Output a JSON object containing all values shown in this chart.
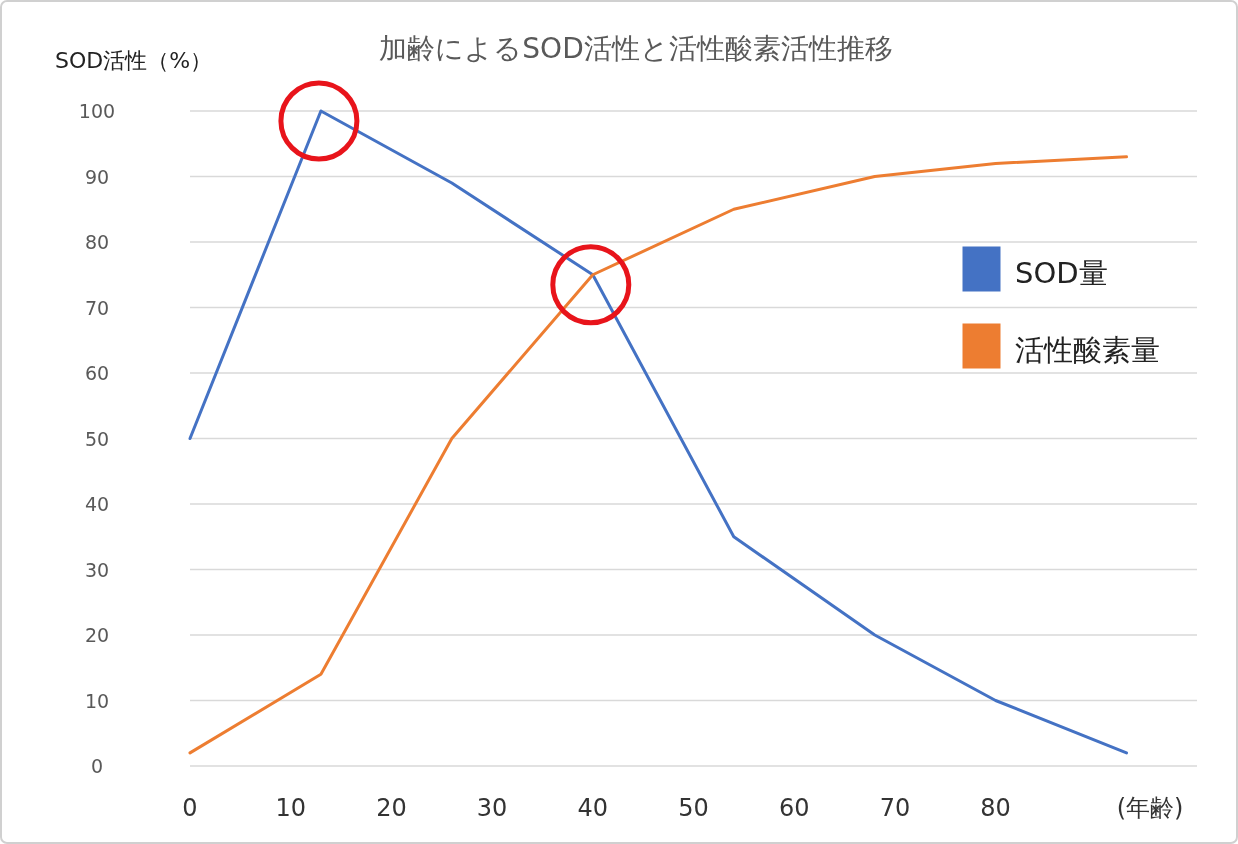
{
  "chart_data": {
    "type": "line",
    "title": "加齢によるSOD活性と活性酸素活性推移",
    "ylabel": "SOD活性（%）",
    "xlabel": "(年齢)",
    "xlim": [
      0,
      100
    ],
    "xticks": [
      0,
      10,
      20,
      30,
      40,
      50,
      60,
      70,
      80
    ],
    "ylim": [
      0,
      100
    ],
    "yticks": [
      0,
      10,
      20,
      30,
      40,
      50,
      60,
      70,
      80,
      90,
      100
    ],
    "grid": "y",
    "legend": "right",
    "series": [
      {
        "name": "SOD量",
        "color": "#4472c4",
        "x": [
          0,
          13,
          26,
          40,
          54,
          68,
          80,
          93
        ],
        "values": [
          50,
          100,
          89,
          75,
          35,
          20,
          10,
          2
        ]
      },
      {
        "name": "活性酸素量",
        "color": "#ed7d31",
        "x": [
          0,
          13,
          26,
          40,
          54,
          68,
          80,
          93
        ],
        "values": [
          2,
          14,
          50,
          75,
          85,
          90,
          92,
          93
        ]
      }
    ]
  }
}
